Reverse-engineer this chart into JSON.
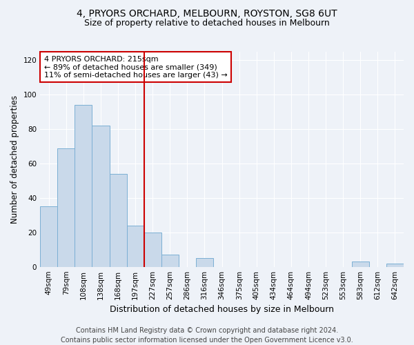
{
  "title": "4, PRYORS ORCHARD, MELBOURN, ROYSTON, SG8 6UT",
  "subtitle": "Size of property relative to detached houses in Melbourn",
  "xlabel": "Distribution of detached houses by size in Melbourn",
  "ylabel": "Number of detached properties",
  "bar_values": [
    35,
    69,
    94,
    82,
    54,
    24,
    20,
    7,
    0,
    5,
    0,
    0,
    0,
    0,
    0,
    0,
    0,
    0,
    3,
    0,
    2
  ],
  "bar_labels": [
    "49sqm",
    "79sqm",
    "108sqm",
    "138sqm",
    "168sqm",
    "197sqm",
    "227sqm",
    "257sqm",
    "286sqm",
    "316sqm",
    "346sqm",
    "375sqm",
    "405sqm",
    "434sqm",
    "464sqm",
    "494sqm",
    "523sqm",
    "553sqm",
    "583sqm",
    "612sqm",
    "642sqm"
  ],
  "bar_color": "#c9d9ea",
  "bar_edge_color": "#7bafd4",
  "background_color": "#eef2f8",
  "grid_color": "#ffffff",
  "annotation_text": "4 PRYORS ORCHARD: 215sqm\n← 89% of detached houses are smaller (349)\n11% of semi-detached houses are larger (43) →",
  "annotation_box_color": "#ffffff",
  "annotation_box_edge_color": "#cc0000",
  "vline_x": 5.5,
  "vline_color": "#cc0000",
  "ylim": [
    0,
    125
  ],
  "yticks": [
    0,
    20,
    40,
    60,
    80,
    100,
    120
  ],
  "footer_line1": "Contains HM Land Registry data © Crown copyright and database right 2024.",
  "footer_line2": "Contains public sector information licensed under the Open Government Licence v3.0.",
  "title_fontsize": 10,
  "subtitle_fontsize": 9,
  "xlabel_fontsize": 9,
  "ylabel_fontsize": 8.5,
  "tick_fontsize": 7.5,
  "annotation_fontsize": 8,
  "footer_fontsize": 7
}
